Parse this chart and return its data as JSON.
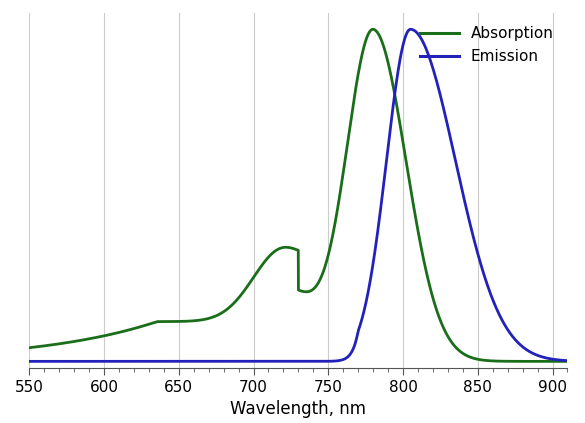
{
  "title": "",
  "xlabel": "Wavelength, nm",
  "ylabel": "",
  "xlim": [
    550,
    910
  ],
  "ylim": [
    -0.02,
    1.05
  ],
  "absorption_color": "#1a6e1a",
  "emission_color": "#2222bb",
  "grid_color": "#cccccc",
  "background_color": "#ffffff",
  "legend_labels": [
    "Absorption",
    "Emission"
  ],
  "tick_fontsize": 11,
  "label_fontsize": 12,
  "line_width": 2.0,
  "xticks": [
    550,
    600,
    650,
    700,
    750,
    800,
    850,
    900
  ]
}
